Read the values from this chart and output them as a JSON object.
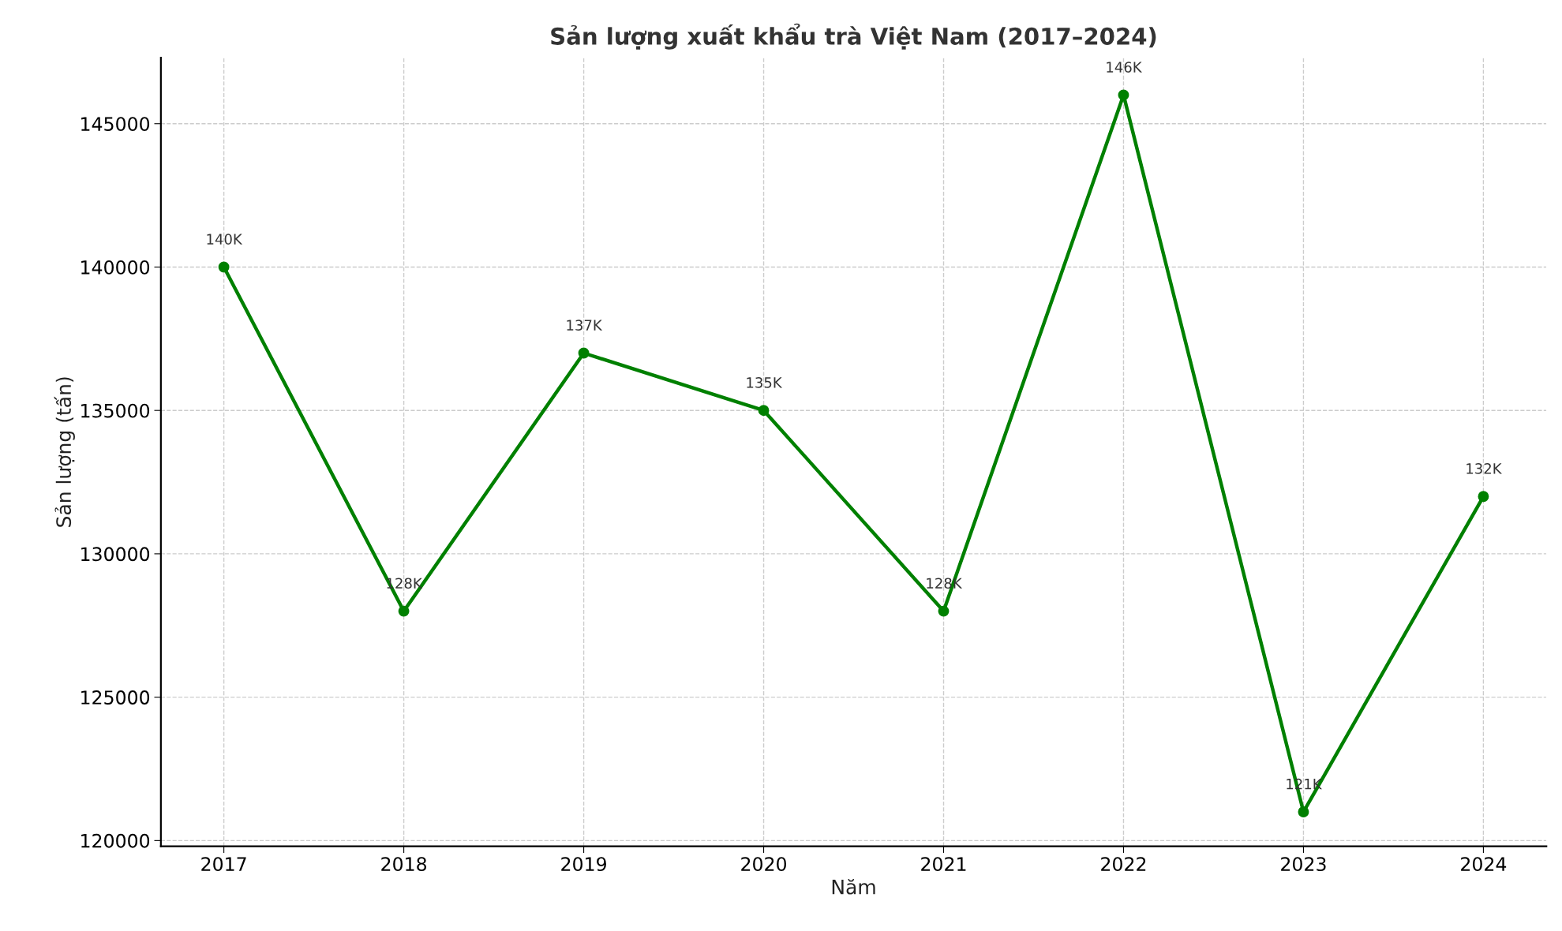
{
  "chart_data": {
    "type": "line",
    "title": "Sản lượng xuất khẩu trà Việt Nam (2017–2024)",
    "xlabel": "Năm",
    "ylabel": "Sản lượng (tấn)",
    "x": [
      2017,
      2018,
      2019,
      2020,
      2021,
      2022,
      2023,
      2024
    ],
    "series": [
      {
        "color": "#008000",
        "values": [
          140000,
          128000,
          137000,
          135000,
          128000,
          146000,
          121000,
          132000
        ],
        "value_labels": [
          "140K",
          "128K",
          "137K",
          "135K",
          "128K",
          "146K",
          "121K",
          "132K"
        ]
      }
    ],
    "xlim": [
      2016.65,
      2024.35
    ],
    "xticks": [
      2017,
      2018,
      2019,
      2020,
      2021,
      2022,
      2023,
      2024
    ],
    "ylim": [
      119800,
      147300
    ],
    "yticks": [
      120000,
      125000,
      130000,
      135000,
      140000,
      145000
    ],
    "grid": true,
    "marker": "circle",
    "line_style": "solid",
    "legend": false
  }
}
